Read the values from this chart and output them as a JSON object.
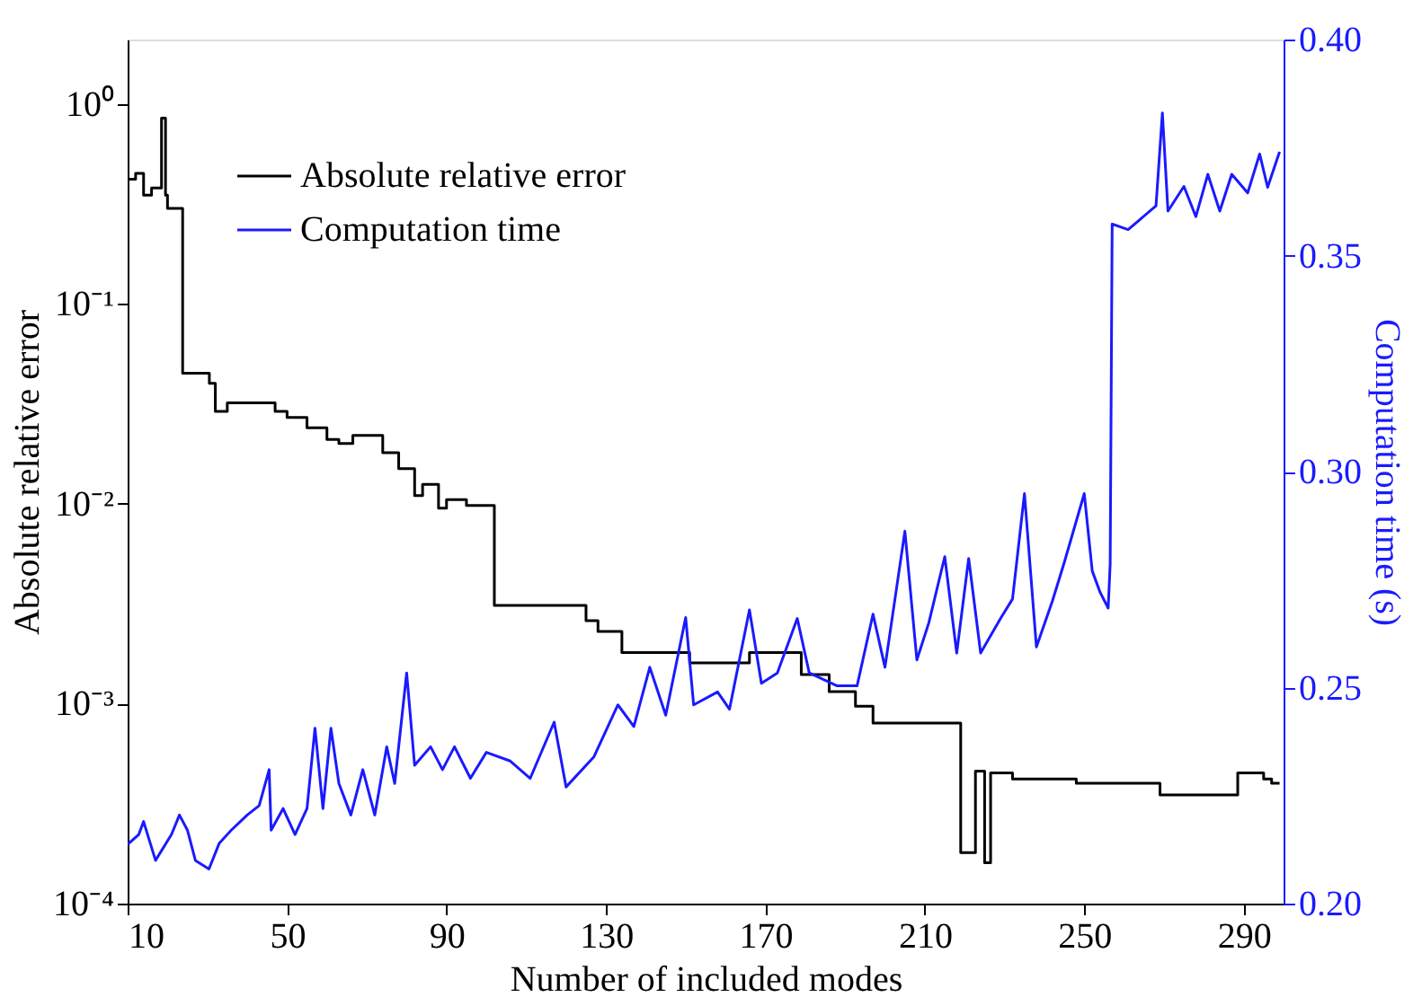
{
  "chart_data": {
    "type": "line",
    "xlabel": "Number of included modes",
    "ylabel": "Absolute relative error",
    "y2label": "Computation time (s)",
    "xlim": [
      10,
      300
    ],
    "xticks": [
      10,
      50,
      90,
      130,
      170,
      210,
      250,
      290
    ],
    "ylim": [
      0.0001,
      2.1
    ],
    "yticks": [
      {
        "value": 0.0001,
        "label": "10⁻⁴"
      },
      {
        "value": 0.001,
        "label": "10⁻³"
      },
      {
        "value": 0.01,
        "label": "10⁻²"
      },
      {
        "value": 0.1,
        "label": "10⁻¹"
      },
      {
        "value": 1,
        "label": "10⁰"
      }
    ],
    "y2lim": [
      0.2,
      0.4
    ],
    "y2ticks": [
      {
        "value": 0.2,
        "label": "0.20"
      },
      0.25,
      {
        "value": 0.3,
        "label": "0.30"
      },
      0.35,
      {
        "value": 0.4,
        "label": "0.40"
      }
    ],
    "log": "y",
    "grid": false,
    "legend": "top left",
    "line_style": "solid",
    "series": [
      {
        "name": "Absolute relative error",
        "type": "step",
        "color": "#000000",
        "x": [
          10,
          12,
          14,
          16,
          18.5,
          19.5,
          20,
          23.8,
          30.5,
          32,
          35,
          47,
          50,
          55,
          60,
          63,
          66.5,
          68,
          74,
          78,
          82,
          84,
          88,
          90,
          95,
          102,
          125,
          128,
          134,
          151,
          166,
          179,
          186,
          192.6,
          197,
          219,
          222.7,
          225,
          226.5,
          232,
          248,
          269,
          288.5,
          295,
          297,
          299
        ],
        "values": [
          0.42,
          0.45,
          0.35,
          0.38,
          0.85,
          0.35,
          0.3,
          0.045,
          0.04,
          0.029,
          0.032,
          0.029,
          0.027,
          0.024,
          0.021,
          0.02,
          0.022,
          0.022,
          0.018,
          0.015,
          0.011,
          0.0125,
          0.0095,
          0.0105,
          0.0098,
          0.0031,
          0.0026,
          0.0023,
          0.0018,
          0.0016,
          0.0018,
          0.0014,
          0.00115,
          0.00097,
          0.0008,
          0.00018,
          0.00046,
          0.00016,
          0.00045,
          0.00042,
          0.0004,
          0.00035,
          0.00045,
          0.00042,
          0.0004,
          0.0004
        ]
      },
      {
        "name": "Computation time",
        "axis": "y2",
        "color": "#1a1aff",
        "x": [
          10,
          12.8,
          14,
          17,
          21,
          23,
          25,
          27,
          30.4,
          33,
          36,
          40,
          43,
          45.5,
          46,
          49,
          52,
          55,
          57,
          59,
          61,
          63,
          66,
          69,
          72,
          75,
          77,
          80,
          82,
          86,
          89,
          92,
          96,
          100,
          106,
          111,
          117,
          120,
          127,
          133,
          137,
          141,
          145,
          150,
          152,
          158,
          161,
          166,
          169,
          173,
          178,
          181,
          188,
          193,
          197,
          200,
          205,
          208,
          211,
          215,
          218,
          221,
          224,
          229,
          232,
          235,
          238,
          242,
          245,
          250,
          252,
          254,
          256,
          256.5,
          257,
          261,
          268,
          269.6,
          271,
          275,
          278,
          281,
          284,
          287,
          291,
          294,
          296,
          299
        ],
        "values": [
          0.2137,
          0.216,
          0.219,
          0.21,
          0.216,
          0.2205,
          0.217,
          0.21,
          0.208,
          0.214,
          0.217,
          0.2205,
          0.2227,
          0.231,
          0.217,
          0.222,
          0.216,
          0.222,
          0.2406,
          0.222,
          0.2406,
          0.2278,
          0.2205,
          0.231,
          0.2205,
          0.2363,
          0.2278,
          0.2534,
          0.232,
          0.2363,
          0.231,
          0.2363,
          0.229,
          0.235,
          0.233,
          0.229,
          0.242,
          0.227,
          0.234,
          0.246,
          0.241,
          0.2547,
          0.2436,
          0.2662,
          0.246,
          0.249,
          0.245,
          0.268,
          0.251,
          0.2534,
          0.266,
          0.2534,
          0.2504,
          0.2504,
          0.267,
          0.2547,
          0.2862,
          0.2564,
          0.265,
          0.2803,
          0.258,
          0.2799,
          0.258,
          0.266,
          0.2705,
          0.2949,
          0.2594,
          0.27,
          0.279,
          0.2949,
          0.277,
          0.272,
          0.2684,
          0.2786,
          0.3573,
          0.356,
          0.3615,
          0.383,
          0.3603,
          0.366,
          0.359,
          0.3688,
          0.3603,
          0.3688,
          0.3645,
          0.3735,
          0.3658,
          0.374
        ]
      }
    ]
  }
}
